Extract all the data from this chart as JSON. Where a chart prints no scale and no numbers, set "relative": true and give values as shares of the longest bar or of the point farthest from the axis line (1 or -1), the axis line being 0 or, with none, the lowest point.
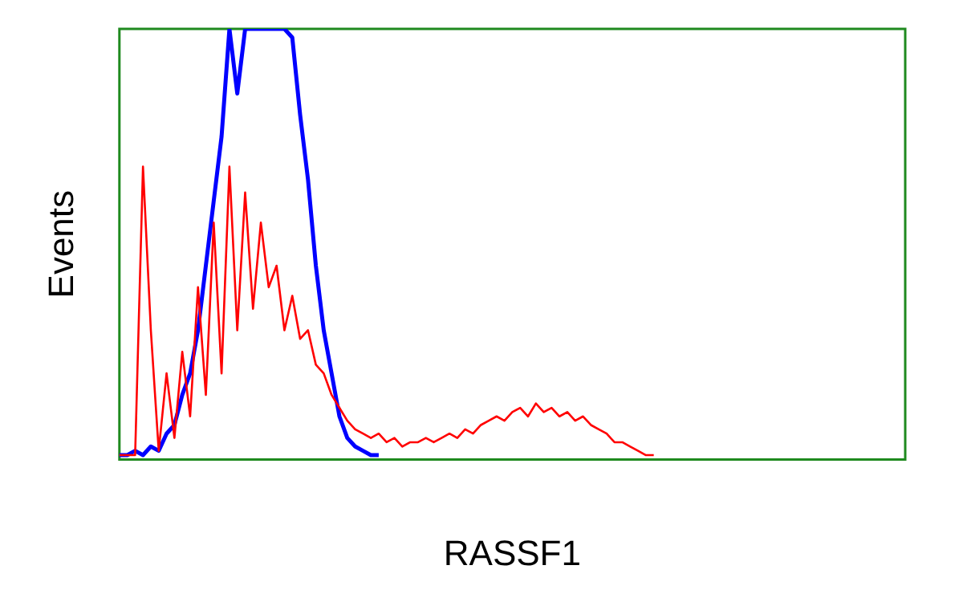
{
  "chart_data": {
    "type": "line",
    "relative": true,
    "xlabel": "RASSF1",
    "ylabel": "Events",
    "legend": false,
    "grid": false,
    "marker": "none",
    "categories": [
      null,
      null,
      null,
      null,
      null,
      null,
      null,
      null,
      null,
      null,
      null,
      null,
      null,
      null,
      null,
      null,
      null,
      null,
      null,
      null,
      null,
      null,
      null,
      null,
      null,
      null,
      null,
      null,
      null,
      null,
      null,
      null,
      null,
      null,
      null,
      null,
      null,
      null,
      null,
      null,
      null,
      null,
      null,
      null,
      null,
      null,
      null,
      null,
      null,
      null,
      null,
      null,
      null,
      null,
      null,
      null,
      null,
      null,
      null,
      null,
      null,
      null,
      null,
      null,
      null,
      null,
      null,
      null,
      null,
      null,
      null,
      null,
      null,
      null,
      null,
      null,
      null,
      null,
      null,
      null,
      null,
      null,
      null,
      null,
      null,
      null,
      null,
      null,
      null,
      null,
      null,
      null,
      null,
      null,
      null,
      null,
      null,
      null,
      null,
      null,
      null
    ],
    "series": [
      {
        "color": "#ff0000",
        "values": [
          0.01,
          0.01,
          0.01,
          0.68,
          0.3,
          0.02,
          0.2,
          0.05,
          0.25,
          0.1,
          0.4,
          0.15,
          0.55,
          0.2,
          0.68,
          0.3,
          0.62,
          0.35,
          0.55,
          0.4,
          0.45,
          0.3,
          0.38,
          0.28,
          0.3,
          0.22,
          0.2,
          0.15,
          0.12,
          0.09,
          0.07,
          0.06,
          0.05,
          0.06,
          0.04,
          0.05,
          0.03,
          0.04,
          0.04,
          0.05,
          0.04,
          0.05,
          0.06,
          0.05,
          0.07,
          0.06,
          0.08,
          0.09,
          0.1,
          0.09,
          0.11,
          0.12,
          0.1,
          0.13,
          0.11,
          0.12,
          0.1,
          0.11,
          0.09,
          0.1,
          0.08,
          0.07,
          0.06,
          0.04,
          0.04,
          0.03,
          0.02,
          0.01,
          0.01,
          null,
          null,
          null,
          null,
          null,
          null,
          null,
          null,
          null,
          null,
          null,
          null,
          null,
          null,
          null,
          null,
          null,
          null,
          null,
          null,
          null,
          null,
          null,
          null,
          null,
          null,
          null,
          null,
          null,
          null,
          null,
          null
        ]
      },
      {
        "color": "#0000ff",
        "values": [
          0.01,
          0.01,
          0.02,
          0.01,
          0.03,
          0.02,
          0.06,
          0.08,
          0.15,
          0.2,
          0.3,
          0.45,
          0.6,
          0.75,
          1,
          0.85,
          1,
          1,
          1,
          1,
          1,
          1,
          0.98,
          0.8,
          0.65,
          0.45,
          0.3,
          0.2,
          0.1,
          0.05,
          0.03,
          0.02,
          0.01,
          0.01,
          null,
          null,
          null,
          null,
          null,
          null,
          null,
          null,
          null,
          null,
          null,
          null,
          null,
          null,
          null,
          null,
          null,
          null,
          null,
          null,
          null,
          null,
          null,
          null,
          null,
          null,
          null,
          null,
          null,
          null,
          null,
          null,
          null,
          null,
          null,
          null,
          null,
          null,
          null,
          null,
          null,
          null,
          null,
          null,
          null,
          null,
          null,
          null,
          null,
          null,
          null,
          null,
          null,
          null,
          null,
          null,
          null,
          null,
          null,
          null,
          null,
          null,
          null,
          null,
          null,
          null,
          null
        ]
      }
    ]
  }
}
